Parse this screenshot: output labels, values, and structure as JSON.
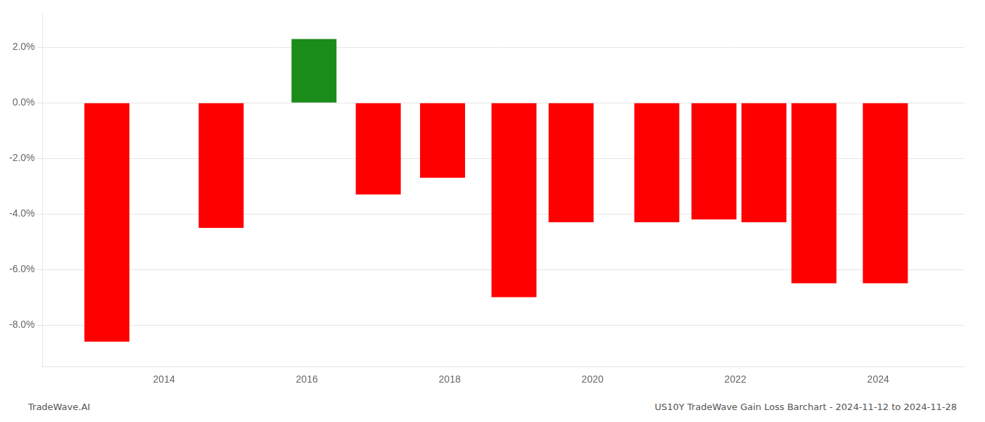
{
  "chart_data": {
    "type": "bar",
    "x": [
      2013.2,
      2014.8,
      2016.1,
      2017.0,
      2017.9,
      2018.9,
      2019.7,
      2020.9,
      2021.7,
      2022.4,
      2023.1,
      2024.1
    ],
    "values": [
      -8.6,
      -4.5,
      2.3,
      -3.3,
      -2.7,
      -7.0,
      -4.3,
      -4.3,
      -4.2,
      -4.3,
      -6.5,
      -6.5
    ],
    "colors": [
      "#ff0000",
      "#ff0000",
      "#1a8c1a",
      "#ff0000",
      "#ff0000",
      "#ff0000",
      "#ff0000",
      "#ff0000",
      "#ff0000",
      "#ff0000",
      "#ff0000",
      "#ff0000"
    ],
    "xlim": [
      2012.3,
      2025.2
    ],
    "xticks": [
      2014,
      2016,
      2018,
      2020,
      2022,
      2024
    ],
    "ylim": [
      -9.5,
      3.2
    ],
    "yticks": [
      {
        "value": 2.0,
        "label": "2.0%"
      },
      {
        "value": 0.0,
        "label": "0.0%"
      },
      {
        "value": -2.0,
        "label": "-2.0%"
      },
      {
        "value": -4.0,
        "label": "-4.0%"
      },
      {
        "value": -6.0,
        "label": "-6.0%"
      },
      {
        "value": -8.0,
        "label": "-8.0%"
      }
    ],
    "grid": true,
    "annotations": [
      "TradeWave.AI",
      "US10Y TradeWave Gain Loss Barchart - 2024-11-12 to 2024-11-28"
    ]
  }
}
